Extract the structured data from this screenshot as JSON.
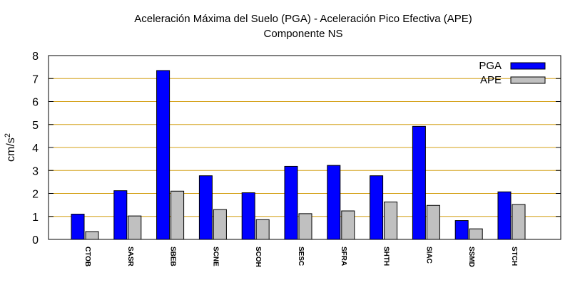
{
  "chart_data": {
    "type": "bar",
    "title": "Aceleración Máxima del Suelo (PGA) -  Aceleración Pico Efectiva (APE)",
    "subtitle": "Componente NS",
    "xlabel": "",
    "ylabel": "cm/s",
    "ylabel_exponent": "2",
    "ylim": [
      0,
      8
    ],
    "yticks": [
      "0",
      "1",
      "2",
      "3",
      "4",
      "5",
      "6",
      "7",
      "8"
    ],
    "grid": true,
    "grid_color": "#d4a017",
    "legend_position": "top-right",
    "categories": [
      "CTOB",
      "SASR",
      "SBEB",
      "SCNE",
      "SCOH",
      "SESC",
      "SFRA",
      "SHTH",
      "SIAC",
      "SSMD",
      "STCH"
    ],
    "series": [
      {
        "name": "PGA",
        "color": "#0000ff",
        "values": [
          1.1,
          2.12,
          7.35,
          2.77,
          2.03,
          3.18,
          3.22,
          2.77,
          4.92,
          0.82,
          2.07
        ]
      },
      {
        "name": "APE",
        "color": "#c0c0c0",
        "values": [
          0.34,
          1.02,
          2.1,
          1.3,
          0.86,
          1.12,
          1.24,
          1.63,
          1.48,
          0.46,
          1.52
        ]
      }
    ]
  }
}
